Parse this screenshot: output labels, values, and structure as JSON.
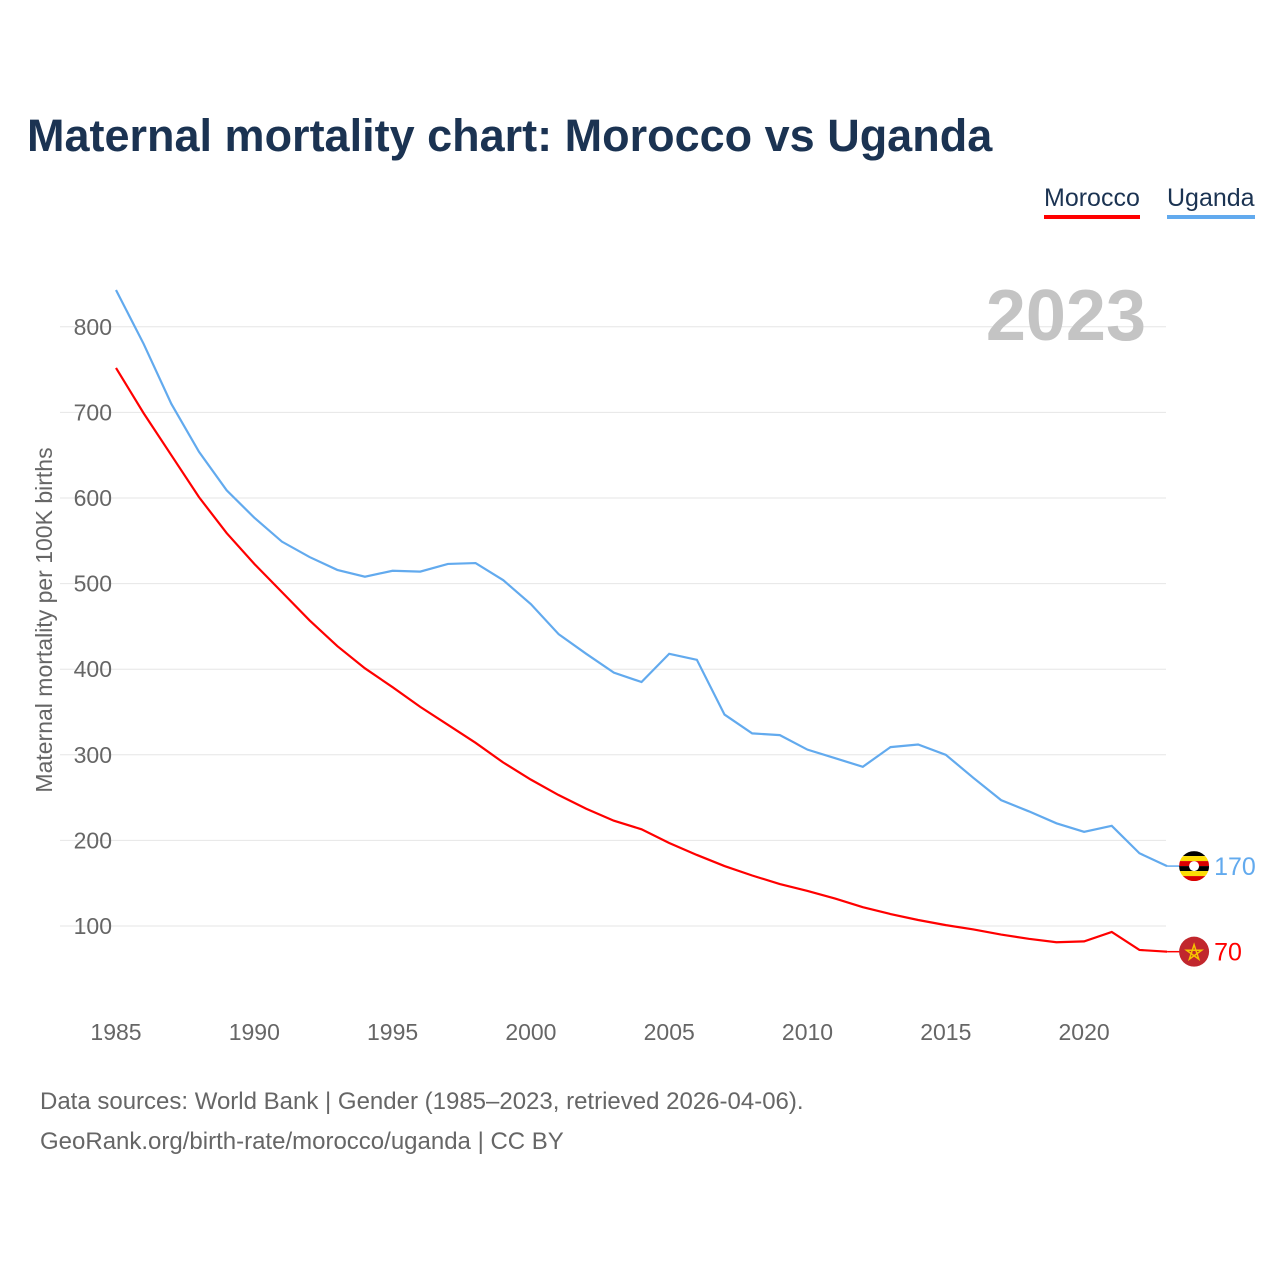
{
  "chart_data": {
    "type": "line",
    "title": "Maternal mortality chart: Morocco vs Uganda",
    "ylabel": "Maternal mortality per 100K births",
    "xlabel": "",
    "year_label": "2023",
    "xlim": [
      1985,
      2023
    ],
    "ylim": [
      0,
      860
    ],
    "xticks": [
      1985,
      1990,
      1995,
      2000,
      2005,
      2010,
      2015,
      2020
    ],
    "yticks": [
      100,
      200,
      300,
      400,
      500,
      600,
      700,
      800
    ],
    "grid": true,
    "legend_position": "top-right",
    "x": [
      1985,
      1986,
      1987,
      1988,
      1989,
      1990,
      1991,
      1992,
      1993,
      1994,
      1995,
      1996,
      1997,
      1998,
      1999,
      2000,
      2001,
      2002,
      2003,
      2004,
      2005,
      2006,
      2007,
      2008,
      2009,
      2010,
      2011,
      2012,
      2013,
      2014,
      2015,
      2016,
      2017,
      2018,
      2019,
      2020,
      2021,
      2022,
      2023
    ],
    "series": [
      {
        "name": "Morocco",
        "color": "#ff0000",
        "end_label": "70",
        "flag": "morocco-flag",
        "values": [
          752,
          699,
          650,
          601,
          559,
          523,
          490,
          457,
          427,
          401,
          379,
          356,
          335,
          314,
          291,
          271,
          253,
          237,
          223,
          213,
          197,
          183,
          170,
          159,
          149,
          141,
          132,
          122,
          114,
          107,
          101,
          96,
          90,
          85,
          81,
          82,
          93,
          72,
          70
        ]
      },
      {
        "name": "Uganda",
        "color": "#62aaee",
        "end_label": "170",
        "flag": "uganda-flag",
        "values": [
          843,
          780,
          710,
          654,
          609,
          577,
          549,
          531,
          516,
          508,
          515,
          514,
          523,
          524,
          504,
          476,
          441,
          418,
          396,
          385,
          418,
          411,
          347,
          325,
          323,
          306,
          296,
          286,
          309,
          312,
          300,
          273,
          247,
          234,
          220,
          210,
          217,
          185,
          170
        ]
      }
    ]
  },
  "footer": {
    "line1": "Data sources: World Bank | Gender (1985–2023, retrieved 2026-04-06).",
    "line2": "GeoRank.org/birth-rate/morocco/uganda | CC BY"
  }
}
